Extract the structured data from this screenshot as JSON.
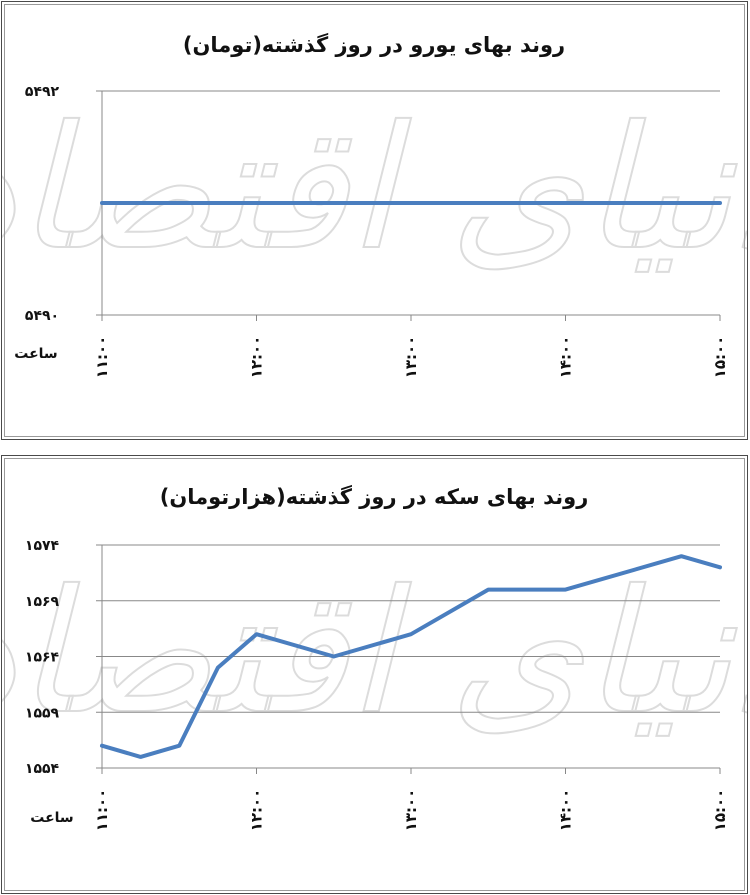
{
  "chart_data": [
    {
      "type": "line",
      "title": "روند بهای یورو در روز گذشته(تومان)",
      "xlabel": "ساعت",
      "ylabel": "",
      "categories": [
        "۱۱:۰۰",
        "۱۲:۰۰",
        "۱۳:۰۰",
        "۱۴:۰۰",
        "۱۵:۰۰"
      ],
      "yticks": [
        "۵۴۹۲",
        "۵۴۹۰"
      ],
      "ylim": [
        5490,
        5492
      ],
      "xlim": [
        11,
        15
      ],
      "series": [
        {
          "x": [
            11,
            15
          ],
          "values": [
            5491,
            5491
          ]
        }
      ],
      "grid": true,
      "color": "#4a7ebf"
    },
    {
      "type": "line",
      "title": "روند بهای سکه در روز گذشته(هزارتومان)",
      "xlabel": "ساعت",
      "ylabel": "",
      "categories": [
        "۱۱:۰۰",
        "۱۲:۰۰",
        "۱۳:۰۰",
        "۱۴:۰۰",
        "۱۵:۰۰"
      ],
      "yticks": [
        "۱۵۷۴",
        "۱۵۶۹",
        "۱۵۶۴",
        "۱۵۵۹",
        "۱۵۵۴"
      ],
      "ylim": [
        1554,
        1574
      ],
      "xlim": [
        11,
        15
      ],
      "series": [
        {
          "x": [
            11,
            11.25,
            11.5,
            11.75,
            12,
            12.5,
            13,
            13.5,
            14,
            14.75,
            15
          ],
          "values": [
            1556,
            1555,
            1556,
            1563,
            1566,
            1564,
            1566,
            1570,
            1570,
            1573,
            1572
          ]
        }
      ],
      "grid": true,
      "color": "#4a7ebf"
    }
  ],
  "watermark": "دنیای اقتصاد"
}
